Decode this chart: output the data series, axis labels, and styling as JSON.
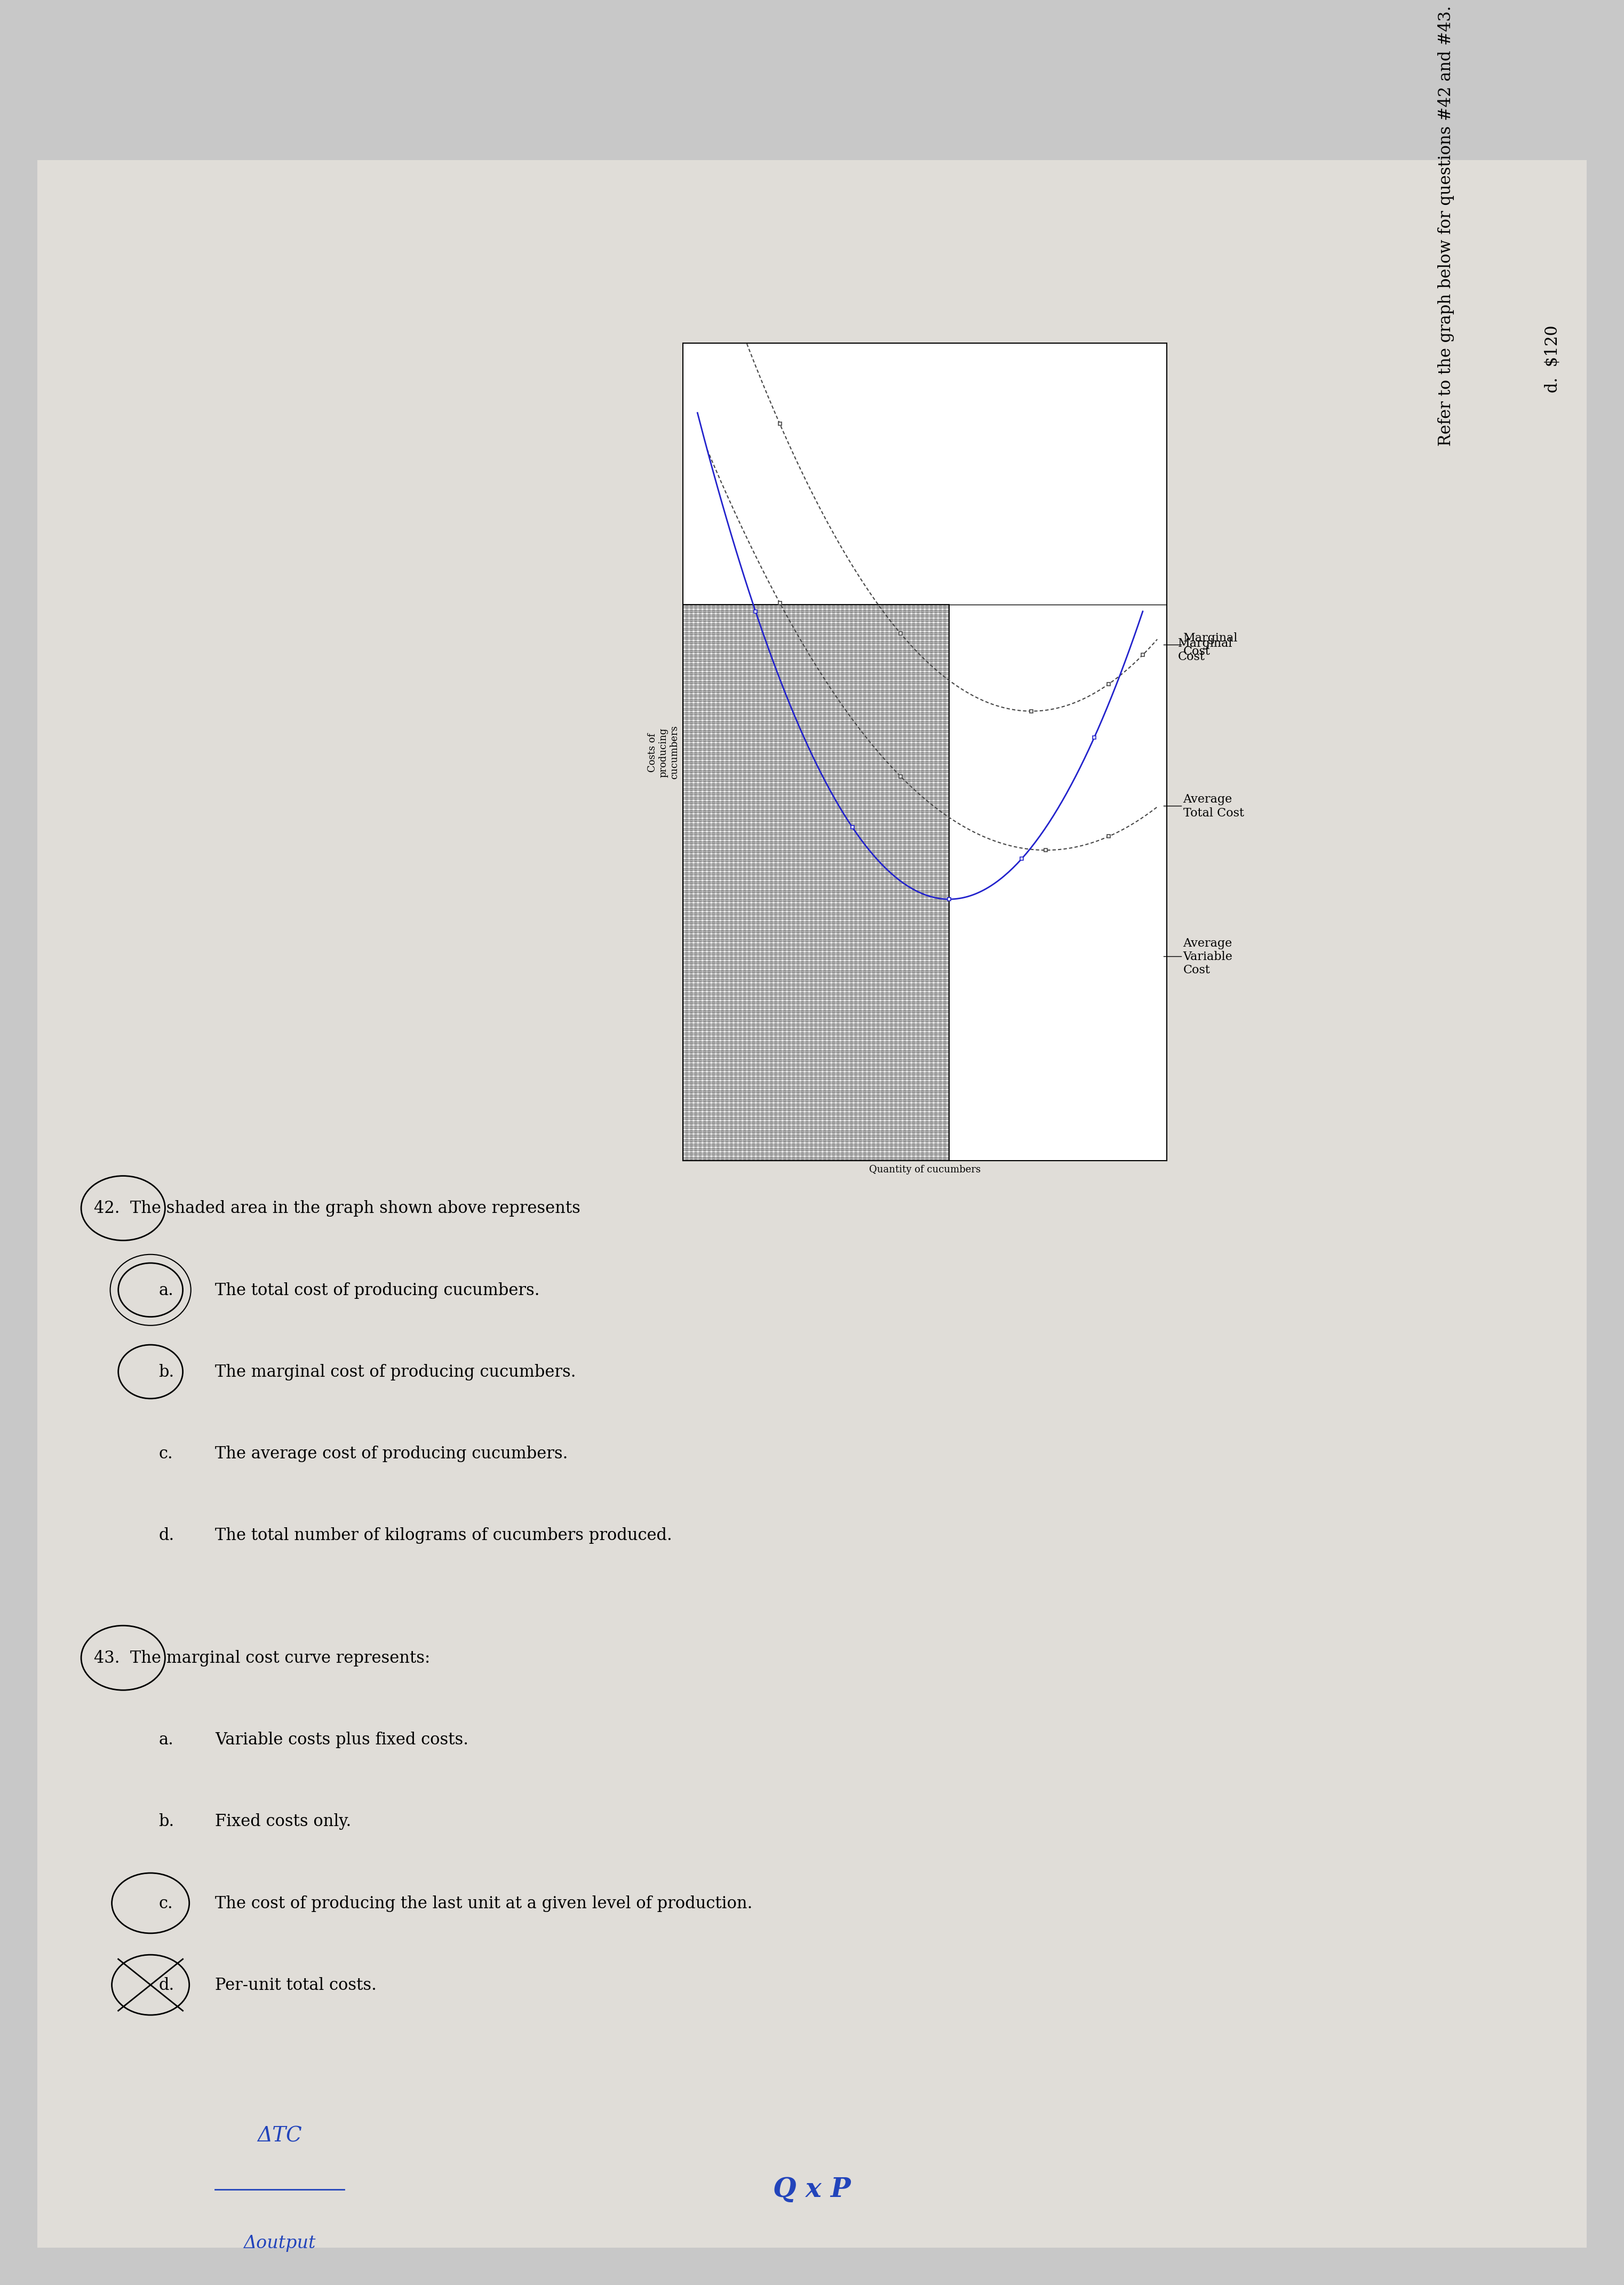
{
  "bg_color": "#c8c8c8",
  "paper_color": "#e0ddd8",
  "title": "Refer to the graph below for questions #42 and #43.",
  "prev_answer": "d.  $120",
  "ylabel": "Costs of\nproducing\ncucumbers",
  "xlabel": "Quantity of cucumbers",
  "mc_label": "Marginal\nCost",
  "atc_label": "Average\nTotal Cost",
  "avc_label": "Average\nVariable\nCost",
  "q42": "42.  The shaded area in the graph shown above represents",
  "q42a": "a.",
  "q42a_text": "The total cost of producing cucumbers.",
  "q42b": "b.",
  "q42b_text": "The marginal cost of producing cucumbers.",
  "q42c": "c.",
  "q42c_text": "The average cost of producing cucumbers.",
  "q42d": "d.",
  "q42d_text": "The total number of kilograms of cucumbers produced.",
  "q43": "43.  The marginal cost curve represents:",
  "q43a": "a.",
  "q43a_text": "Variable costs plus fixed costs.",
  "q43b": "b.",
  "q43b_text": "Fixed costs only.",
  "q43c": "c.",
  "q43c_text": "The cost of producing the last unit at a given level of production.",
  "q43d": "d.",
  "q43d_text": "Per-unit total costs.",
  "handwritten_top": "ΔTC",
  "handwritten_bottom": "Δoutput",
  "handwritten_qxp": "Q x P",
  "font_size_main": 22,
  "font_size_small": 18
}
